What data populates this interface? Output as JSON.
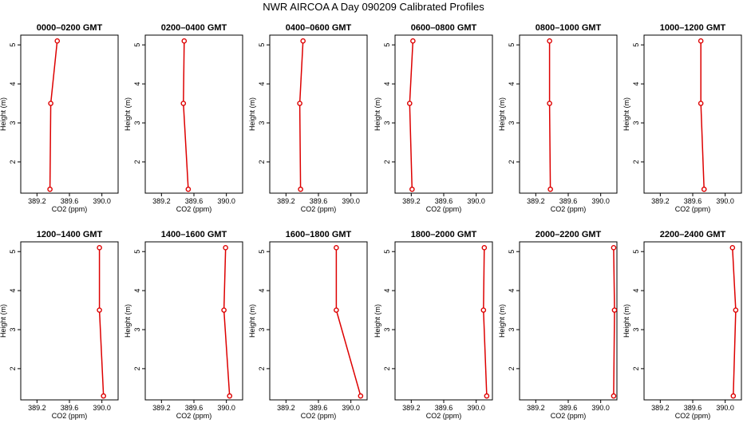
{
  "title": "NWR AIRCOA A  Day 090209  Calibrated Profiles",
  "chart_data": [
    {
      "type": "line",
      "title": "0000–0200 GMT",
      "xlabel": "CO2 (ppm)",
      "ylabel": "Height (m)",
      "xlim": [
        389.0,
        390.2
      ],
      "ylim": [
        1.2,
        5.25
      ],
      "xticks": [
        "389.2",
        "389.6",
        "390.0"
      ],
      "yticks": [
        "2",
        "3",
        "4",
        "5"
      ],
      "series": [
        {
          "color": "#dd0000",
          "x": [
            389.36,
            389.37,
            389.45
          ],
          "y": [
            1.3,
            3.5,
            5.1
          ]
        }
      ]
    },
    {
      "type": "line",
      "title": "0200–0400 GMT",
      "xlabel": "CO2 (ppm)",
      "ylabel": "Height (m)",
      "xlim": [
        389.0,
        390.2
      ],
      "ylim": [
        1.2,
        5.25
      ],
      "xticks": [
        "389.2",
        "389.6",
        "390.0"
      ],
      "yticks": [
        "2",
        "3",
        "4",
        "5"
      ],
      "series": [
        {
          "color": "#dd0000",
          "x": [
            389.53,
            389.47,
            389.48
          ],
          "y": [
            1.3,
            3.5,
            5.1
          ]
        }
      ]
    },
    {
      "type": "line",
      "title": "0400–0600 GMT",
      "xlabel": "CO2 (ppm)",
      "ylabel": "Height (m)",
      "xlim": [
        389.0,
        390.2
      ],
      "ylim": [
        1.2,
        5.25
      ],
      "xticks": [
        "389.2",
        "389.6",
        "390.0"
      ],
      "yticks": [
        "2",
        "3",
        "4",
        "5"
      ],
      "series": [
        {
          "color": "#dd0000",
          "x": [
            389.38,
            389.37,
            389.41
          ],
          "y": [
            1.3,
            3.5,
            5.1
          ]
        }
      ]
    },
    {
      "type": "line",
      "title": "0600–0800 GMT",
      "xlabel": "CO2 (ppm)",
      "ylabel": "Height (m)",
      "xlim": [
        389.0,
        390.2
      ],
      "ylim": [
        1.2,
        5.25
      ],
      "xticks": [
        "389.2",
        "389.6",
        "390.0"
      ],
      "yticks": [
        "2",
        "3",
        "4",
        "5"
      ],
      "series": [
        {
          "color": "#dd0000",
          "x": [
            389.21,
            389.18,
            389.22
          ],
          "y": [
            1.3,
            3.5,
            5.1
          ]
        }
      ]
    },
    {
      "type": "line",
      "title": "0800–1000 GMT",
      "xlabel": "CO2 (ppm)",
      "ylabel": "Height (m)",
      "xlim": [
        389.0,
        390.2
      ],
      "ylim": [
        1.2,
        5.25
      ],
      "xticks": [
        "389.2",
        "389.6",
        "390.0"
      ],
      "yticks": [
        "2",
        "3",
        "4",
        "5"
      ],
      "series": [
        {
          "color": "#dd0000",
          "x": [
            389.38,
            389.37,
            389.37
          ],
          "y": [
            1.3,
            3.5,
            5.1
          ]
        }
      ]
    },
    {
      "type": "line",
      "title": "1000–1200 GMT",
      "xlabel": "CO2 (ppm)",
      "ylabel": "Height (m)",
      "xlim": [
        389.0,
        390.2
      ],
      "ylim": [
        1.2,
        5.25
      ],
      "xticks": [
        "389.2",
        "389.6",
        "390.0"
      ],
      "yticks": [
        "2",
        "3",
        "4",
        "5"
      ],
      "series": [
        {
          "color": "#dd0000",
          "x": [
            389.74,
            389.7,
            389.7
          ],
          "y": [
            1.3,
            3.5,
            5.1
          ]
        }
      ]
    },
    {
      "type": "line",
      "title": "1200–1400 GMT",
      "xlabel": "CO2 (ppm)",
      "ylabel": "Height (m)",
      "xlim": [
        389.0,
        390.2
      ],
      "ylim": [
        1.2,
        5.25
      ],
      "xticks": [
        "389.2",
        "389.6",
        "390.0"
      ],
      "yticks": [
        "2",
        "3",
        "4",
        "5"
      ],
      "series": [
        {
          "color": "#dd0000",
          "x": [
            390.02,
            389.97,
            389.97
          ],
          "y": [
            1.3,
            3.5,
            5.1
          ]
        }
      ]
    },
    {
      "type": "line",
      "title": "1400–1600 GMT",
      "xlabel": "CO2 (ppm)",
      "ylabel": "Height (m)",
      "xlim": [
        389.0,
        390.2
      ],
      "ylim": [
        1.2,
        5.25
      ],
      "xticks": [
        "389.2",
        "389.6",
        "390.0"
      ],
      "yticks": [
        "2",
        "3",
        "4",
        "5"
      ],
      "series": [
        {
          "color": "#dd0000",
          "x": [
            390.04,
            389.97,
            389.99
          ],
          "y": [
            1.3,
            3.5,
            5.1
          ]
        }
      ]
    },
    {
      "type": "line",
      "title": "1600–1800 GMT",
      "xlabel": "CO2 (ppm)",
      "ylabel": "Height (m)",
      "xlim": [
        389.0,
        390.2
      ],
      "ylim": [
        1.2,
        5.25
      ],
      "xticks": [
        "389.2",
        "389.6",
        "390.0"
      ],
      "yticks": [
        "2",
        "3",
        "4",
        "5"
      ],
      "series": [
        {
          "color": "#dd0000",
          "x": [
            390.12,
            389.82,
            389.82
          ],
          "y": [
            1.3,
            3.5,
            5.1
          ]
        }
      ]
    },
    {
      "type": "line",
      "title": "1800–2000 GMT",
      "xlabel": "CO2 (ppm)",
      "ylabel": "Height (m)",
      "xlim": [
        389.0,
        390.2
      ],
      "ylim": [
        1.2,
        5.25
      ],
      "xticks": [
        "389.2",
        "389.6",
        "390.0"
      ],
      "yticks": [
        "2",
        "3",
        "4",
        "5"
      ],
      "series": [
        {
          "color": "#dd0000",
          "x": [
            390.13,
            390.09,
            390.1
          ],
          "y": [
            1.3,
            3.5,
            5.1
          ]
        }
      ]
    },
    {
      "type": "line",
      "title": "2000–2200 GMT",
      "xlabel": "CO2 (ppm)",
      "ylabel": "Height (m)",
      "xlim": [
        389.0,
        390.2
      ],
      "ylim": [
        1.2,
        5.25
      ],
      "xticks": [
        "389.2",
        "389.6",
        "390.0"
      ],
      "yticks": [
        "2",
        "3",
        "4",
        "5"
      ],
      "series": [
        {
          "color": "#dd0000",
          "x": [
            390.16,
            390.17,
            390.16
          ],
          "y": [
            1.3,
            3.5,
            5.1
          ]
        }
      ]
    },
    {
      "type": "line",
      "title": "2200–2400 GMT",
      "xlabel": "CO2 (ppm)",
      "ylabel": "Height (m)",
      "xlim": [
        389.0,
        390.2
      ],
      "ylim": [
        1.2,
        5.25
      ],
      "xticks": [
        "389.2",
        "389.6",
        "390.0"
      ],
      "yticks": [
        "2",
        "3",
        "4",
        "5"
      ],
      "series": [
        {
          "color": "#dd0000",
          "x": [
            390.1,
            390.13,
            390.09
          ],
          "y": [
            1.3,
            3.5,
            5.1
          ]
        }
      ]
    }
  ]
}
